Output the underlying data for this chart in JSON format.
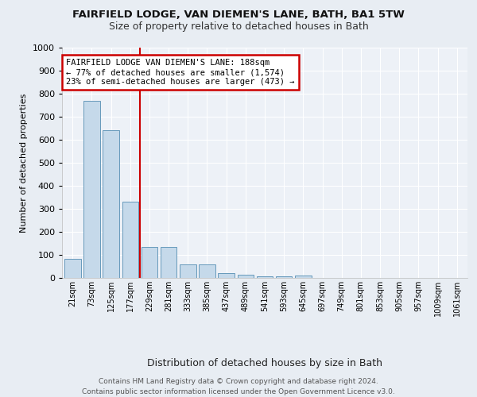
{
  "title": "FAIRFIELD LODGE, VAN DIEMEN'S LANE, BATH, BA1 5TW",
  "subtitle": "Size of property relative to detached houses in Bath",
  "xlabel": "Distribution of detached houses by size in Bath",
  "ylabel": "Number of detached properties",
  "categories": [
    "21sqm",
    "73sqm",
    "125sqm",
    "177sqm",
    "229sqm",
    "281sqm",
    "333sqm",
    "385sqm",
    "437sqm",
    "489sqm",
    "541sqm",
    "593sqm",
    "645sqm",
    "697sqm",
    "749sqm",
    "801sqm",
    "853sqm",
    "905sqm",
    "957sqm",
    "1009sqm",
    "1061sqm"
  ],
  "values": [
    83,
    770,
    640,
    330,
    135,
    135,
    60,
    60,
    20,
    13,
    8,
    8,
    12,
    0,
    0,
    0,
    0,
    0,
    0,
    0,
    0
  ],
  "bar_color": "#c5d9ea",
  "bar_edge_color": "#6699bb",
  "vline_color": "#cc0000",
  "vline_x_index": 3.5,
  "ylim": [
    0,
    1000
  ],
  "yticks": [
    0,
    100,
    200,
    300,
    400,
    500,
    600,
    700,
    800,
    900,
    1000
  ],
  "annotation_title": "FAIRFIELD LODGE VAN DIEMEN'S LANE: 188sqm",
  "annotation_line1": "← 77% of detached houses are smaller (1,574)",
  "annotation_line2": "23% of semi-detached houses are larger (473) →",
  "annotation_box_color": "#cc0000",
  "footer1": "Contains HM Land Registry data © Crown copyright and database right 2024.",
  "footer2": "Contains public sector information licensed under the Open Government Licence v3.0.",
  "bg_color": "#e8edf3",
  "plot_bg_color": "#edf1f7"
}
